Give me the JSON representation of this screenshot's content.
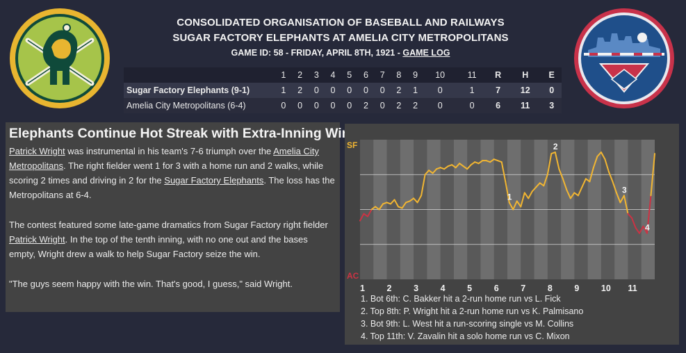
{
  "header": {
    "league": "CONSOLIDATED ORGANISATION OF BASEBALL AND RAILWAYS",
    "matchup": "SUGAR FACTORY ELEPHANTS AT AMELIA CITY METROPOLITANS",
    "game_info": "GAME ID: 58 - FRIDAY, APRIL 8TH, 1921 - ",
    "game_log_link": "GAME LOG"
  },
  "linescore": {
    "innings": [
      "1",
      "2",
      "3",
      "4",
      "5",
      "6",
      "7",
      "8",
      "9",
      "10",
      "11"
    ],
    "totals_headers": [
      "R",
      "H",
      "E"
    ],
    "teams": [
      {
        "name": "Sugar Factory Elephants (9-1)",
        "innings": [
          "1",
          "2",
          "0",
          "0",
          "0",
          "0",
          "0",
          "2",
          "1",
          "0",
          "1"
        ],
        "totals": [
          "7",
          "12",
          "0"
        ]
      },
      {
        "name": "Amelia City Metropolitans (6-4)",
        "innings": [
          "0",
          "0",
          "0",
          "0",
          "0",
          "2",
          "0",
          "2",
          "2",
          "0",
          "0"
        ],
        "totals": [
          "6",
          "11",
          "3"
        ]
      }
    ]
  },
  "article": {
    "headline": "Elephants Continue Hot Streak with Extra-Inning Win",
    "p1": {
      "link1": "Patrick Wright",
      "t1": " was instrumental in his team's 7-6 triumph over the ",
      "link2": "Amelia City Metropolitans",
      "t2": ". The right fielder went 1 for 3 with a home run and 2 walks, while scoring 2 times and driving in 2 for the ",
      "link3": "Sugar Factory Elephants",
      "t3": ". The loss has the Metropolitans at 6-4."
    },
    "p2": {
      "t1": "The contest featured some late-game dramatics from Sugar Factory right fielder ",
      "link1": "Patrick Wright",
      "t2": ". In the top of the tenth inning, with no one out and the bases empty, Wright drew a walk to help Sugar Factory seize the win."
    },
    "p3": "\"The guys seem happy with the win. That's good, I guess,\" said Wright."
  },
  "chart_data": {
    "type": "line",
    "y_top_label": "SF",
    "y_bottom_label": "AC",
    "ylim": [
      0,
      100
    ],
    "x_labels": [
      "1",
      "2",
      "3",
      "4",
      "5",
      "6",
      "7",
      "8",
      "9",
      "10",
      "11"
    ],
    "x": [
      0,
      1,
      2,
      3,
      4,
      5,
      6,
      7,
      8,
      9,
      10,
      11,
      12,
      13,
      14,
      15,
      16,
      17,
      18,
      19,
      20,
      21,
      22,
      23,
      24,
      25,
      26,
      27,
      28,
      29,
      30,
      31,
      32,
      33,
      34,
      35,
      36,
      37,
      38,
      39,
      40,
      41,
      42,
      43,
      44,
      45,
      46,
      47,
      48,
      49,
      50,
      51,
      52,
      53,
      54,
      55,
      56,
      57,
      58,
      59,
      60,
      61,
      62,
      63,
      64,
      65,
      66,
      67,
      68,
      69,
      70,
      71,
      72,
      73,
      74,
      75,
      76,
      77
    ],
    "y": [
      42,
      47,
      45,
      50,
      52,
      50,
      54,
      55,
      54,
      57,
      52,
      51,
      55,
      56,
      58,
      55,
      60,
      75,
      78,
      76,
      79,
      80,
      79,
      81,
      82,
      80,
      83,
      81,
      79,
      82,
      84,
      83,
      85,
      85,
      84,
      86,
      85,
      84,
      70,
      55,
      50,
      56,
      52,
      62,
      58,
      63,
      66,
      69,
      67,
      75,
      90,
      91,
      79,
      72,
      64,
      58,
      62,
      60,
      66,
      72,
      70,
      80,
      88,
      91,
      86,
      77,
      70,
      62,
      55,
      60,
      47,
      44,
      37,
      33,
      38,
      33,
      60,
      90
    ],
    "annotations": [
      {
        "label": "1",
        "text": "1. Bot 6th: C. Bakker hit a 2-run home run vs L. Fick"
      },
      {
        "label": "2",
        "text": "2. Top 8th: P. Wright hit a 2-run home run vs K. Palmisano"
      },
      {
        "label": "3",
        "text": "3. Bot 9th: L. West hit a run-scoring single vs M. Collins"
      },
      {
        "label": "4",
        "text": "4. Top 11th: V. Zavalin hit a solo home run vs C. Mixon"
      }
    ],
    "colors": {
      "sf": "#f2b632",
      "ac": "#cc3344",
      "band_dark": "#595959",
      "band_light": "#6e6e6e",
      "axis_label_sf": "#f2b632",
      "axis_label_ac": "#cc3344"
    }
  }
}
